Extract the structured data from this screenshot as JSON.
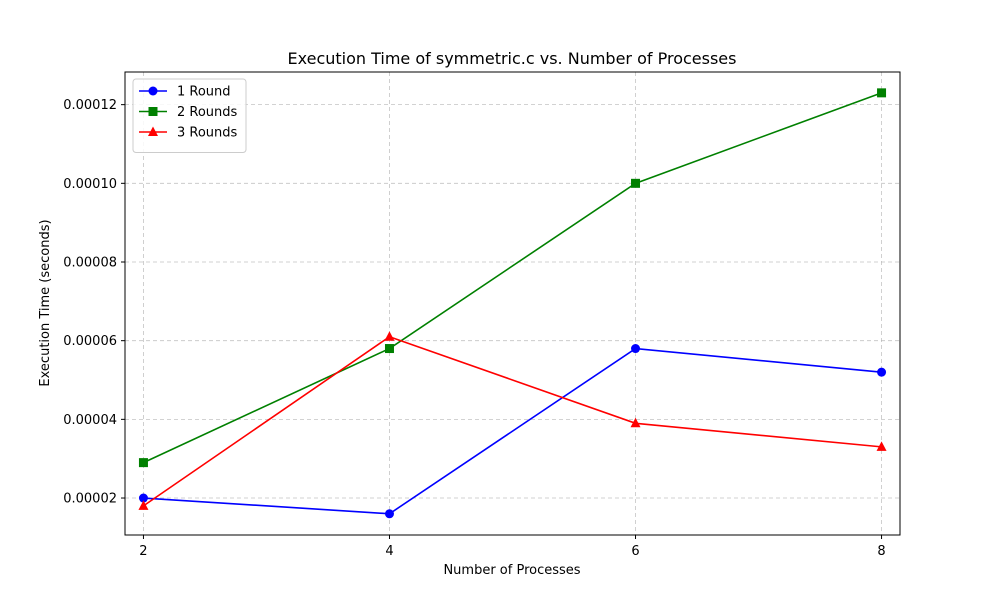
{
  "chart_data": {
    "type": "line",
    "title": "Execution Time of symmetric.c vs. Number of Processes",
    "xlabel": "Number of Processes",
    "ylabel": "Execution Time (seconds)",
    "x": [
      2,
      4,
      6,
      8
    ],
    "x_ticks": [
      "2",
      "4",
      "6",
      "8"
    ],
    "xlim": [
      1.85,
      8.15
    ],
    "y_ticks": [
      2e-05,
      4e-05,
      6e-05,
      8e-05,
      0.0001,
      0.00012
    ],
    "y_tick_labels": [
      "0.00002",
      "0.00004",
      "0.00006",
      "0.00008",
      "0.00010",
      "0.00012"
    ],
    "ylim": [
      1.06e-05,
      0.0001283
    ],
    "grid": true,
    "legend_position": "top-left",
    "series": [
      {
        "name": "1 Round",
        "color": "#0000ff",
        "marker": "circle",
        "values": [
          2e-05,
          1.6e-05,
          5.8e-05,
          5.2e-05
        ]
      },
      {
        "name": "2 Rounds",
        "color": "#008000",
        "marker": "square",
        "values": [
          2.9e-05,
          5.8e-05,
          0.0001,
          0.000123
        ]
      },
      {
        "name": "3 Rounds",
        "color": "#ff0000",
        "marker": "triangle",
        "values": [
          1.8e-05,
          6.1e-05,
          3.9e-05,
          3.3e-05
        ]
      }
    ]
  }
}
